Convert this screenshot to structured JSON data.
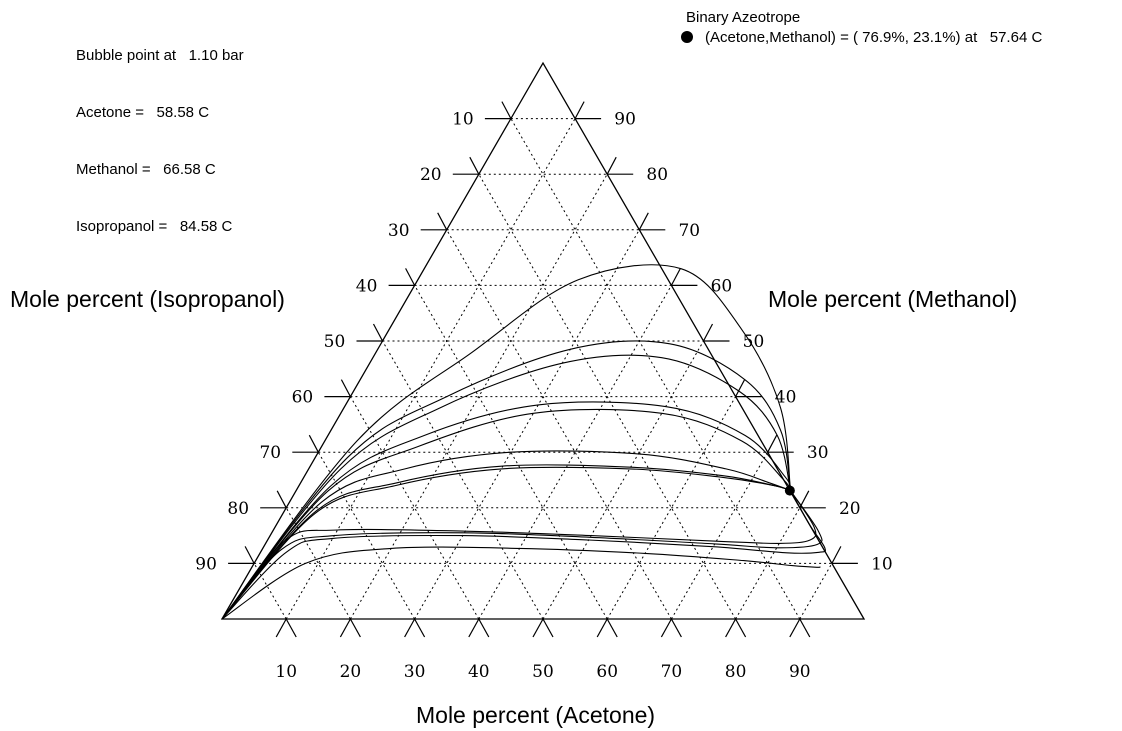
{
  "header": {
    "bubble_label": "Bubble point at",
    "pressure": "1.10 bar",
    "components": [
      {
        "label": "Acetone =",
        "value": "58.58 C"
      },
      {
        "label": "Methanol =",
        "value": "66.58 C"
      },
      {
        "label": "Isopropanol =",
        "value": "84.58 C"
      }
    ],
    "azeotrope_title": "Binary Azeotrope",
    "azeotrope_text": "(Acetone,Methanol) = ( 76.9%, 23.1%) at",
    "azeotrope_temp": "57.64 C"
  },
  "chart_data": {
    "type": "ternary",
    "components": [
      "Acetone",
      "Methanol",
      "Isopropanol"
    ],
    "axis_titles": {
      "bottom": "Mole percent (Acetone)",
      "left": "Mole percent (Isopropanol)",
      "right": "Mole percent (Methanol)"
    },
    "tick_labels": [
      "10",
      "20",
      "30",
      "40",
      "50",
      "60",
      "70",
      "80",
      "90"
    ],
    "grid": "dotted, 10% spacing",
    "azeotrope": {
      "acetone": 76.9,
      "methanol": 23.1,
      "isopropanol": 0.0
    },
    "series": [
      {
        "points": [
          [
            8,
            10
          ],
          [
            20,
            12.7
          ],
          [
            40,
            12.7
          ],
          [
            60,
            11.8
          ],
          [
            76,
            10.5
          ],
          [
            84,
            9.6
          ],
          [
            88,
            9.3
          ],
          [
            88.5,
            9.4
          ]
        ]
      },
      {
        "points": [
          [
            4,
            12
          ],
          [
            10,
            14.5
          ],
          [
            30,
            15
          ],
          [
            50,
            14.2
          ],
          [
            70,
            13
          ],
          [
            82,
            11.9
          ],
          [
            87,
            12
          ],
          [
            87.5,
            12.8
          ],
          [
            83,
            17
          ],
          [
            77.5,
            22.6
          ]
        ]
      },
      {
        "points": [
          [
            3,
            12.5
          ],
          [
            10,
            15
          ],
          [
            30,
            15.5
          ],
          [
            50,
            14.7
          ],
          [
            70,
            13.5
          ],
          [
            80,
            12.8
          ],
          [
            86,
            13.4
          ],
          [
            85,
            15.8
          ],
          [
            77.2,
            22.9
          ]
        ]
      },
      {
        "points": [
          [
            2.7,
            14
          ],
          [
            10,
            16
          ],
          [
            30,
            15.8
          ],
          [
            50,
            15
          ],
          [
            70,
            14
          ],
          [
            80,
            13.6
          ],
          [
            84.5,
            14.2
          ],
          [
            84,
            16.5
          ],
          [
            77,
            23.1
          ]
        ]
      },
      {
        "points": [
          [
            5,
            19
          ],
          [
            15,
            24
          ],
          [
            30,
            27
          ],
          [
            50,
            27
          ],
          [
            65,
            25.5
          ],
          [
            74,
            24
          ],
          [
            77,
            23.1
          ]
        ]
      },
      {
        "points": [
          [
            5,
            19.5
          ],
          [
            15,
            24.5
          ],
          [
            30,
            27.5
          ],
          [
            50,
            27.3
          ],
          [
            65,
            25.8
          ],
          [
            74,
            24
          ],
          [
            77,
            23.1
          ]
        ]
      },
      {
        "points": [
          [
            5,
            21
          ],
          [
            15,
            27
          ],
          [
            30,
            30
          ],
          [
            50,
            29.7
          ],
          [
            65,
            27
          ],
          [
            73,
            24.5
          ],
          [
            77,
            23.1
          ]
        ]
      },
      {
        "points": [
          [
            5,
            23
          ],
          [
            15,
            31
          ],
          [
            30,
            37
          ],
          [
            50,
            37
          ],
          [
            65,
            32
          ],
          [
            75,
            25
          ],
          [
            77,
            23.1
          ]
        ]
      },
      {
        "points": [
          [
            5,
            24
          ],
          [
            15,
            33
          ],
          [
            30,
            38.5
          ],
          [
            50,
            38.2
          ],
          [
            65,
            33
          ],
          [
            75,
            25.5
          ],
          [
            77,
            23.1
          ]
        ]
      },
      {
        "points": [
          [
            5,
            27
          ],
          [
            15,
            38
          ],
          [
            30,
            46
          ],
          [
            45,
            47
          ],
          [
            60,
            41
          ],
          [
            70,
            33
          ],
          [
            77,
            23.1
          ]
        ]
      },
      {
        "points": [
          [
            5,
            29
          ],
          [
            15,
            40
          ],
          [
            30,
            48.5
          ],
          [
            45,
            49.5
          ],
          [
            60,
            43
          ],
          [
            70,
            34
          ],
          [
            77,
            23.1
          ]
        ]
      },
      {
        "points": [
          [
            5,
            32
          ],
          [
            15,
            48
          ],
          [
            25,
            61
          ],
          [
            40,
            63
          ],
          [
            55,
            52
          ],
          [
            68,
            38
          ],
          [
            77,
            23.1
          ]
        ]
      }
    ]
  }
}
